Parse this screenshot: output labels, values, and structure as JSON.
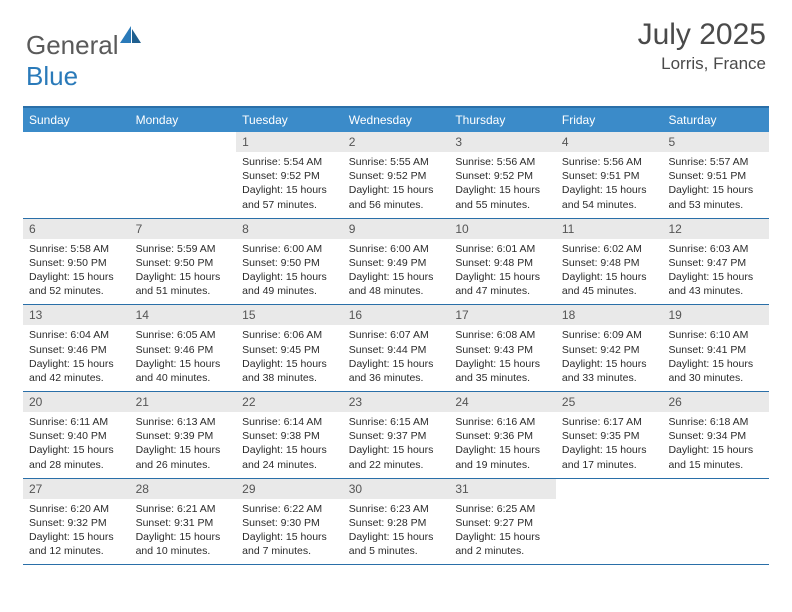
{
  "logo": {
    "text_general": "General",
    "text_blue": "Blue"
  },
  "title": "July 2025",
  "location": "Lorris, France",
  "colors": {
    "header_bg": "#3b8bc9",
    "rule": "#2a6fa8",
    "daynum_bg": "#e9e9e9",
    "text": "#2b2b2b",
    "title_text": "#4a4a4a"
  },
  "day_headers": [
    "Sunday",
    "Monday",
    "Tuesday",
    "Wednesday",
    "Thursday",
    "Friday",
    "Saturday"
  ],
  "weeks": [
    [
      {
        "n": "",
        "sr": "",
        "ss": "",
        "dl": ""
      },
      {
        "n": "",
        "sr": "",
        "ss": "",
        "dl": ""
      },
      {
        "n": "1",
        "sr": "Sunrise: 5:54 AM",
        "ss": "Sunset: 9:52 PM",
        "dl": "Daylight: 15 hours and 57 minutes."
      },
      {
        "n": "2",
        "sr": "Sunrise: 5:55 AM",
        "ss": "Sunset: 9:52 PM",
        "dl": "Daylight: 15 hours and 56 minutes."
      },
      {
        "n": "3",
        "sr": "Sunrise: 5:56 AM",
        "ss": "Sunset: 9:52 PM",
        "dl": "Daylight: 15 hours and 55 minutes."
      },
      {
        "n": "4",
        "sr": "Sunrise: 5:56 AM",
        "ss": "Sunset: 9:51 PM",
        "dl": "Daylight: 15 hours and 54 minutes."
      },
      {
        "n": "5",
        "sr": "Sunrise: 5:57 AM",
        "ss": "Sunset: 9:51 PM",
        "dl": "Daylight: 15 hours and 53 minutes."
      }
    ],
    [
      {
        "n": "6",
        "sr": "Sunrise: 5:58 AM",
        "ss": "Sunset: 9:50 PM",
        "dl": "Daylight: 15 hours and 52 minutes."
      },
      {
        "n": "7",
        "sr": "Sunrise: 5:59 AM",
        "ss": "Sunset: 9:50 PM",
        "dl": "Daylight: 15 hours and 51 minutes."
      },
      {
        "n": "8",
        "sr": "Sunrise: 6:00 AM",
        "ss": "Sunset: 9:50 PM",
        "dl": "Daylight: 15 hours and 49 minutes."
      },
      {
        "n": "9",
        "sr": "Sunrise: 6:00 AM",
        "ss": "Sunset: 9:49 PM",
        "dl": "Daylight: 15 hours and 48 minutes."
      },
      {
        "n": "10",
        "sr": "Sunrise: 6:01 AM",
        "ss": "Sunset: 9:48 PM",
        "dl": "Daylight: 15 hours and 47 minutes."
      },
      {
        "n": "11",
        "sr": "Sunrise: 6:02 AM",
        "ss": "Sunset: 9:48 PM",
        "dl": "Daylight: 15 hours and 45 minutes."
      },
      {
        "n": "12",
        "sr": "Sunrise: 6:03 AM",
        "ss": "Sunset: 9:47 PM",
        "dl": "Daylight: 15 hours and 43 minutes."
      }
    ],
    [
      {
        "n": "13",
        "sr": "Sunrise: 6:04 AM",
        "ss": "Sunset: 9:46 PM",
        "dl": "Daylight: 15 hours and 42 minutes."
      },
      {
        "n": "14",
        "sr": "Sunrise: 6:05 AM",
        "ss": "Sunset: 9:46 PM",
        "dl": "Daylight: 15 hours and 40 minutes."
      },
      {
        "n": "15",
        "sr": "Sunrise: 6:06 AM",
        "ss": "Sunset: 9:45 PM",
        "dl": "Daylight: 15 hours and 38 minutes."
      },
      {
        "n": "16",
        "sr": "Sunrise: 6:07 AM",
        "ss": "Sunset: 9:44 PM",
        "dl": "Daylight: 15 hours and 36 minutes."
      },
      {
        "n": "17",
        "sr": "Sunrise: 6:08 AM",
        "ss": "Sunset: 9:43 PM",
        "dl": "Daylight: 15 hours and 35 minutes."
      },
      {
        "n": "18",
        "sr": "Sunrise: 6:09 AM",
        "ss": "Sunset: 9:42 PM",
        "dl": "Daylight: 15 hours and 33 minutes."
      },
      {
        "n": "19",
        "sr": "Sunrise: 6:10 AM",
        "ss": "Sunset: 9:41 PM",
        "dl": "Daylight: 15 hours and 30 minutes."
      }
    ],
    [
      {
        "n": "20",
        "sr": "Sunrise: 6:11 AM",
        "ss": "Sunset: 9:40 PM",
        "dl": "Daylight: 15 hours and 28 minutes."
      },
      {
        "n": "21",
        "sr": "Sunrise: 6:13 AM",
        "ss": "Sunset: 9:39 PM",
        "dl": "Daylight: 15 hours and 26 minutes."
      },
      {
        "n": "22",
        "sr": "Sunrise: 6:14 AM",
        "ss": "Sunset: 9:38 PM",
        "dl": "Daylight: 15 hours and 24 minutes."
      },
      {
        "n": "23",
        "sr": "Sunrise: 6:15 AM",
        "ss": "Sunset: 9:37 PM",
        "dl": "Daylight: 15 hours and 22 minutes."
      },
      {
        "n": "24",
        "sr": "Sunrise: 6:16 AM",
        "ss": "Sunset: 9:36 PM",
        "dl": "Daylight: 15 hours and 19 minutes."
      },
      {
        "n": "25",
        "sr": "Sunrise: 6:17 AM",
        "ss": "Sunset: 9:35 PM",
        "dl": "Daylight: 15 hours and 17 minutes."
      },
      {
        "n": "26",
        "sr": "Sunrise: 6:18 AM",
        "ss": "Sunset: 9:34 PM",
        "dl": "Daylight: 15 hours and 15 minutes."
      }
    ],
    [
      {
        "n": "27",
        "sr": "Sunrise: 6:20 AM",
        "ss": "Sunset: 9:32 PM",
        "dl": "Daylight: 15 hours and 12 minutes."
      },
      {
        "n": "28",
        "sr": "Sunrise: 6:21 AM",
        "ss": "Sunset: 9:31 PM",
        "dl": "Daylight: 15 hours and 10 minutes."
      },
      {
        "n": "29",
        "sr": "Sunrise: 6:22 AM",
        "ss": "Sunset: 9:30 PM",
        "dl": "Daylight: 15 hours and 7 minutes."
      },
      {
        "n": "30",
        "sr": "Sunrise: 6:23 AM",
        "ss": "Sunset: 9:28 PM",
        "dl": "Daylight: 15 hours and 5 minutes."
      },
      {
        "n": "31",
        "sr": "Sunrise: 6:25 AM",
        "ss": "Sunset: 9:27 PM",
        "dl": "Daylight: 15 hours and 2 minutes."
      },
      {
        "n": "",
        "sr": "",
        "ss": "",
        "dl": ""
      },
      {
        "n": "",
        "sr": "",
        "ss": "",
        "dl": ""
      }
    ]
  ]
}
